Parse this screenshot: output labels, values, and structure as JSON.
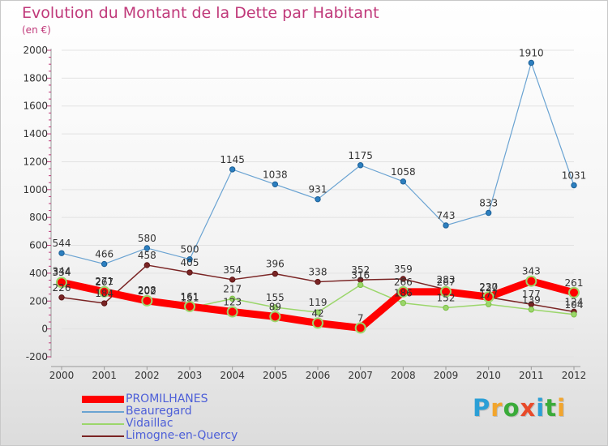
{
  "chart_data": {
    "type": "line",
    "title": "Evolution du Montant de la Dette par Habitant",
    "subtitle": "(en €)",
    "xlabel": "",
    "ylabel": "",
    "x": [
      "2000",
      "2001",
      "2002",
      "2003",
      "2004",
      "2005",
      "2006",
      "2007",
      "2008",
      "2009",
      "2010",
      "2011",
      "2012"
    ],
    "ylim": [
      -200,
      2000
    ],
    "yticks": [
      -200,
      0,
      200,
      400,
      600,
      800,
      1000,
      1200,
      1400,
      1600,
      1800,
      2000
    ],
    "grid": "horizontal",
    "legend_position": "bottom-left",
    "series": [
      {
        "name": "PROMILHANES",
        "color": "#ff0000",
        "values": [
          334,
          267,
          202,
          161,
          123,
          89,
          42,
          7,
          266,
          267,
          230,
          343,
          261
        ],
        "labels": [
          "334",
          "267",
          "202",
          "161",
          "123",
          "89",
          "42",
          "7",
          "266",
          "267",
          "230",
          "343",
          "261"
        ]
      },
      {
        "name": "Beauregard",
        "color": "#6aa3d2",
        "values": [
          544,
          466,
          580,
          500,
          1145,
          1038,
          931,
          1175,
          1058,
          743,
          833,
          1910,
          1031
        ],
        "labels": [
          "544",
          "466",
          "580",
          "500",
          "1145",
          "1038",
          "931",
          "1175",
          "1058",
          "743",
          "833",
          "1910",
          "1031"
        ]
      },
      {
        "name": "Vidaillac",
        "color": "#9bd66b",
        "values": [
          344,
          271,
          208,
          151,
          217,
          155,
          119,
          316,
          186,
          152,
          177,
          139,
          104
        ],
        "labels": [
          "344",
          "271",
          "208",
          "151",
          "217",
          "155",
          "119",
          "316",
          "186",
          "152",
          "177",
          "139",
          "104"
        ]
      },
      {
        "name": "Limogne-en-Quercy",
        "color": "#7a2424",
        "values": [
          226,
          184,
          458,
          405,
          354,
          396,
          338,
          352,
          359,
          283,
          227,
          177,
          124
        ],
        "labels": [
          "226",
          "184",
          "458",
          "405",
          "354",
          "396",
          "338",
          "352",
          "359",
          "283",
          "227",
          "177",
          "124"
        ]
      }
    ]
  },
  "brand": {
    "letters": [
      "P",
      "r",
      "o",
      "x",
      "i",
      "t",
      "i"
    ],
    "colors": [
      "#2b9fd6",
      "#f2a52c",
      "#3aab3a",
      "#e84a2a",
      "#2b9fd6",
      "#3aab3a",
      "#f2a52c"
    ]
  }
}
